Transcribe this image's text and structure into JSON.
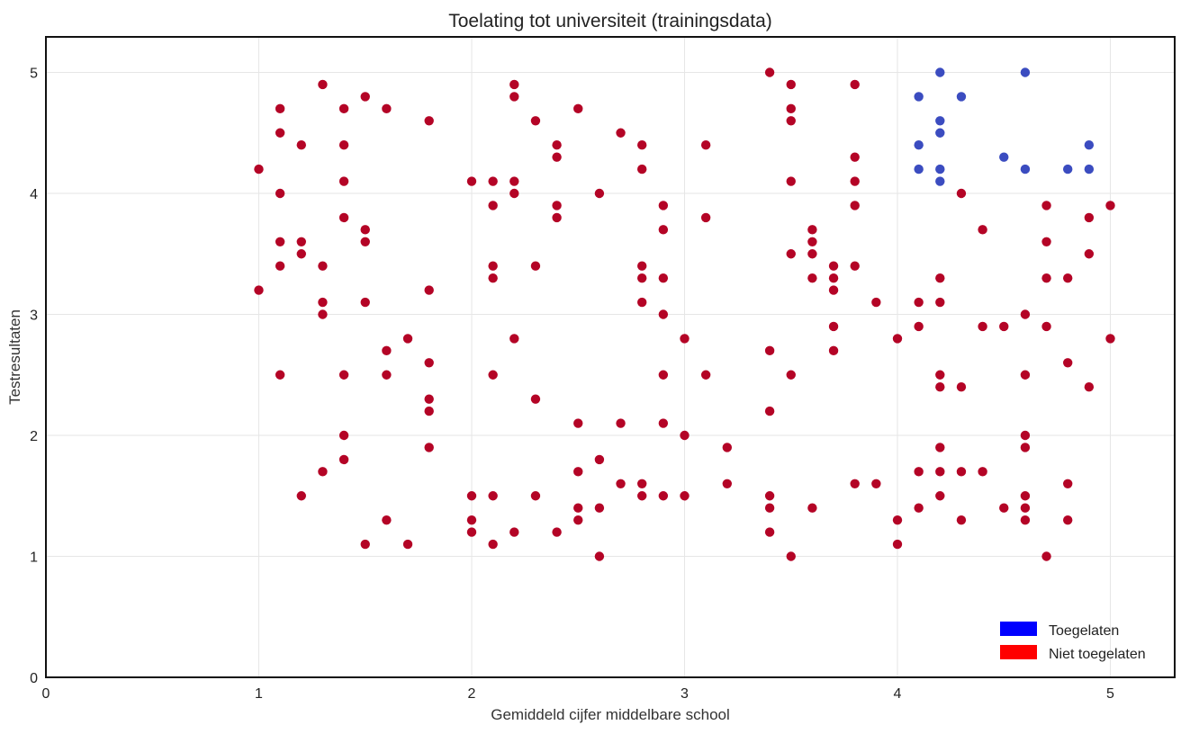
{
  "chart_data": {
    "type": "scatter",
    "title": "Toelating tot universiteit (trainingsdata)",
    "xlabel": "Gemiddeld cijfer middelbare school",
    "ylabel": "Testresultaten",
    "xlim": [
      0,
      5.3
    ],
    "ylim": [
      0,
      5.3
    ],
    "xticks": [
      "0",
      "1",
      "2",
      "3",
      "4",
      "5"
    ],
    "yticks": [
      "0",
      "1",
      "2",
      "3",
      "4",
      "5"
    ],
    "grid": true,
    "legend_position": "bottom-right",
    "legend": [
      {
        "label": "Toegelaten",
        "color": "#0000ff"
      },
      {
        "label": "Niet toegelaten",
        "color": "#ff0000"
      }
    ],
    "series": [
      {
        "name": "Toegelaten",
        "color": "#3b4cc0",
        "points": [
          [
            4.1,
            4.8
          ],
          [
            4.1,
            4.4
          ],
          [
            4.1,
            4.2
          ],
          [
            4.2,
            5.0
          ],
          [
            4.2,
            4.6
          ],
          [
            4.2,
            4.5
          ],
          [
            4.2,
            4.2
          ],
          [
            4.2,
            4.1
          ],
          [
            4.3,
            4.8
          ],
          [
            4.5,
            4.3
          ],
          [
            4.6,
            5.0
          ],
          [
            4.6,
            4.2
          ],
          [
            4.8,
            4.2
          ],
          [
            4.9,
            4.4
          ],
          [
            4.9,
            4.2
          ]
        ]
      },
      {
        "name": "Niet toegelaten",
        "color": "#b40426",
        "points": [
          [
            1.0,
            4.2
          ],
          [
            1.0,
            3.2
          ],
          [
            1.1,
            4.7
          ],
          [
            1.1,
            4.5
          ],
          [
            1.1,
            4.0
          ],
          [
            1.1,
            3.6
          ],
          [
            1.1,
            3.4
          ],
          [
            1.1,
            2.5
          ],
          [
            1.2,
            4.4
          ],
          [
            1.2,
            3.6
          ],
          [
            1.2,
            3.5
          ],
          [
            1.2,
            1.5
          ],
          [
            1.3,
            4.9
          ],
          [
            1.3,
            3.4
          ],
          [
            1.3,
            3.1
          ],
          [
            1.3,
            3.0
          ],
          [
            1.3,
            1.7
          ],
          [
            1.4,
            4.7
          ],
          [
            1.4,
            4.4
          ],
          [
            1.4,
            4.1
          ],
          [
            1.4,
            3.8
          ],
          [
            1.4,
            2.5
          ],
          [
            1.4,
            2.0
          ],
          [
            1.4,
            1.8
          ],
          [
            1.5,
            4.8
          ],
          [
            1.5,
            3.7
          ],
          [
            1.5,
            3.6
          ],
          [
            1.5,
            3.1
          ],
          [
            1.5,
            1.1
          ],
          [
            1.6,
            4.7
          ],
          [
            1.6,
            2.7
          ],
          [
            1.6,
            2.5
          ],
          [
            1.6,
            1.3
          ],
          [
            1.7,
            2.8
          ],
          [
            1.7,
            1.1
          ],
          [
            1.8,
            4.6
          ],
          [
            1.8,
            3.2
          ],
          [
            1.8,
            2.6
          ],
          [
            1.8,
            2.3
          ],
          [
            1.8,
            2.2
          ],
          [
            1.8,
            1.9
          ],
          [
            2.0,
            4.1
          ],
          [
            2.0,
            1.5
          ],
          [
            2.0,
            1.3
          ],
          [
            2.0,
            1.2
          ],
          [
            2.1,
            4.1
          ],
          [
            2.1,
            3.9
          ],
          [
            2.1,
            3.4
          ],
          [
            2.1,
            3.3
          ],
          [
            2.1,
            2.5
          ],
          [
            2.1,
            1.5
          ],
          [
            2.1,
            1.1
          ],
          [
            2.2,
            4.9
          ],
          [
            2.2,
            4.8
          ],
          [
            2.2,
            4.1
          ],
          [
            2.2,
            4.0
          ],
          [
            2.2,
            2.8
          ],
          [
            2.2,
            1.2
          ],
          [
            2.3,
            4.6
          ],
          [
            2.3,
            3.4
          ],
          [
            2.3,
            2.3
          ],
          [
            2.3,
            1.5
          ],
          [
            2.4,
            4.4
          ],
          [
            2.4,
            4.3
          ],
          [
            2.4,
            3.9
          ],
          [
            2.4,
            3.8
          ],
          [
            2.4,
            1.2
          ],
          [
            2.5,
            4.7
          ],
          [
            2.5,
            2.1
          ],
          [
            2.5,
            1.7
          ],
          [
            2.5,
            1.4
          ],
          [
            2.5,
            1.3
          ],
          [
            2.6,
            4.0
          ],
          [
            2.6,
            1.8
          ],
          [
            2.6,
            1.4
          ],
          [
            2.6,
            1.0
          ],
          [
            2.7,
            4.5
          ],
          [
            2.7,
            2.1
          ],
          [
            2.7,
            1.6
          ],
          [
            2.8,
            4.4
          ],
          [
            2.8,
            4.2
          ],
          [
            2.8,
            3.4
          ],
          [
            2.8,
            3.3
          ],
          [
            2.8,
            3.1
          ],
          [
            2.8,
            1.6
          ],
          [
            2.8,
            1.5
          ],
          [
            2.9,
            3.9
          ],
          [
            2.9,
            3.7
          ],
          [
            2.9,
            3.3
          ],
          [
            2.9,
            3.0
          ],
          [
            2.9,
            2.5
          ],
          [
            2.9,
            2.1
          ],
          [
            2.9,
            1.5
          ],
          [
            3.0,
            2.8
          ],
          [
            3.0,
            2.0
          ],
          [
            3.0,
            1.5
          ],
          [
            3.1,
            4.4
          ],
          [
            3.1,
            3.8
          ],
          [
            3.1,
            2.5
          ],
          [
            3.2,
            1.9
          ],
          [
            3.2,
            1.6
          ],
          [
            3.4,
            5.0
          ],
          [
            3.4,
            2.7
          ],
          [
            3.4,
            2.2
          ],
          [
            3.4,
            1.5
          ],
          [
            3.4,
            1.4
          ],
          [
            3.4,
            1.2
          ],
          [
            3.5,
            4.9
          ],
          [
            3.5,
            4.7
          ],
          [
            3.5,
            4.6
          ],
          [
            3.5,
            4.1
          ],
          [
            3.5,
            3.5
          ],
          [
            3.5,
            2.5
          ],
          [
            3.5,
            1.0
          ],
          [
            3.6,
            3.7
          ],
          [
            3.6,
            3.6
          ],
          [
            3.6,
            3.5
          ],
          [
            3.6,
            3.3
          ],
          [
            3.6,
            1.4
          ],
          [
            3.7,
            3.4
          ],
          [
            3.7,
            3.3
          ],
          [
            3.7,
            3.2
          ],
          [
            3.7,
            2.9
          ],
          [
            3.7,
            2.7
          ],
          [
            3.8,
            4.9
          ],
          [
            3.8,
            4.3
          ],
          [
            3.8,
            4.1
          ],
          [
            3.8,
            3.9
          ],
          [
            3.8,
            3.4
          ],
          [
            3.8,
            1.6
          ],
          [
            3.9,
            3.1
          ],
          [
            3.9,
            1.6
          ],
          [
            4.0,
            2.8
          ],
          [
            4.0,
            1.3
          ],
          [
            4.0,
            1.1
          ],
          [
            4.1,
            3.1
          ],
          [
            4.1,
            2.9
          ],
          [
            4.1,
            1.7
          ],
          [
            4.1,
            1.4
          ],
          [
            4.2,
            3.3
          ],
          [
            4.2,
            3.1
          ],
          [
            4.2,
            2.5
          ],
          [
            4.2,
            2.4
          ],
          [
            4.2,
            1.9
          ],
          [
            4.2,
            1.7
          ],
          [
            4.2,
            1.5
          ],
          [
            4.3,
            4.0
          ],
          [
            4.3,
            2.4
          ],
          [
            4.3,
            1.7
          ],
          [
            4.3,
            1.3
          ],
          [
            4.4,
            3.7
          ],
          [
            4.4,
            2.9
          ],
          [
            4.4,
            1.7
          ],
          [
            4.5,
            2.9
          ],
          [
            4.5,
            1.4
          ],
          [
            4.6,
            3.0
          ],
          [
            4.6,
            2.5
          ],
          [
            4.6,
            2.0
          ],
          [
            4.6,
            1.9
          ],
          [
            4.6,
            1.5
          ],
          [
            4.6,
            1.4
          ],
          [
            4.6,
            1.3
          ],
          [
            4.7,
            3.9
          ],
          [
            4.7,
            3.6
          ],
          [
            4.7,
            3.3
          ],
          [
            4.7,
            2.9
          ],
          [
            4.7,
            1.0
          ],
          [
            4.8,
            3.3
          ],
          [
            4.8,
            2.6
          ],
          [
            4.8,
            1.6
          ],
          [
            4.8,
            1.3
          ],
          [
            4.9,
            3.8
          ],
          [
            4.9,
            3.5
          ],
          [
            4.9,
            2.4
          ],
          [
            5.0,
            3.9
          ],
          [
            5.0,
            2.8
          ]
        ]
      }
    ]
  }
}
